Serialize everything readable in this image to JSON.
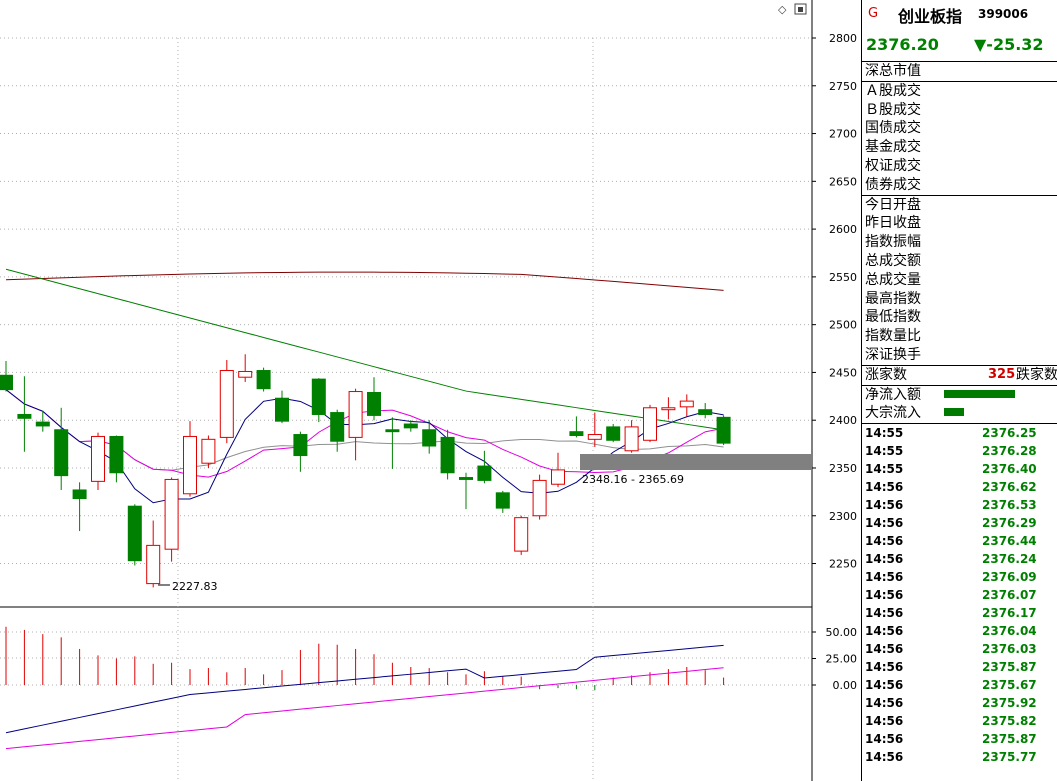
{
  "colors": {
    "up": "#e00000",
    "down": "#008000",
    "ma5": "#000080",
    "ma10": "#e000e0",
    "ma20": "#909090",
    "ma60": "#008000",
    "ma250": "#800000",
    "highlight": "#808080"
  },
  "price_axis": {
    "ticks": [
      "2800",
      "2750",
      "2700",
      "2650",
      "2600",
      "2550",
      "2500",
      "2450",
      "2400",
      "2350",
      "2300",
      "2250"
    ]
  },
  "volume_axis": {
    "ticks": [
      "50.00",
      "25.00",
      "0.00"
    ]
  },
  "annotations": {
    "low_label": "2227.83",
    "range_label": "2348.16 - 2365.69"
  },
  "candles": [
    {
      "o": 2447,
      "c": 2432,
      "h": 2462,
      "l": 2430
    },
    {
      "o": 2406,
      "c": 2402,
      "h": 2446,
      "l": 2367
    },
    {
      "o": 2398,
      "c": 2394,
      "h": 2410,
      "l": 2388
    },
    {
      "o": 2390,
      "c": 2342,
      "h": 2413,
      "l": 2327
    },
    {
      "o": 2327,
      "c": 2318,
      "h": 2335,
      "l": 2284
    },
    {
      "o": 2336,
      "c": 2383,
      "h": 2387,
      "l": 2327
    },
    {
      "o": 2383,
      "c": 2345,
      "h": 2384,
      "l": 2335
    },
    {
      "o": 2310,
      "c": 2253,
      "h": 2312,
      "l": 2248
    },
    {
      "o": 2229,
      "c": 2269,
      "h": 2295,
      "l": 2225
    },
    {
      "o": 2265,
      "c": 2338,
      "h": 2340,
      "l": 2252
    },
    {
      "o": 2323,
      "c": 2383,
      "h": 2399,
      "l": 2320
    },
    {
      "o": 2355,
      "c": 2380,
      "h": 2384,
      "l": 2350
    },
    {
      "o": 2382,
      "c": 2452,
      "h": 2463,
      "l": 2376
    },
    {
      "o": 2445,
      "c": 2451,
      "h": 2469,
      "l": 2440
    },
    {
      "o": 2452,
      "c": 2433,
      "h": 2455,
      "l": 2430
    },
    {
      "o": 2423,
      "c": 2399,
      "h": 2431,
      "l": 2397
    },
    {
      "o": 2385,
      "c": 2363,
      "h": 2388,
      "l": 2346
    },
    {
      "o": 2443,
      "c": 2406,
      "h": 2444,
      "l": 2398
    },
    {
      "o": 2408,
      "c": 2378,
      "h": 2411,
      "l": 2367
    },
    {
      "o": 2382,
      "c": 2430,
      "h": 2433,
      "l": 2358
    },
    {
      "o": 2429,
      "c": 2405,
      "h": 2445,
      "l": 2400
    },
    {
      "o": 2390,
      "c": 2388,
      "h": 2403,
      "l": 2349
    },
    {
      "o": 2396,
      "c": 2392,
      "h": 2400,
      "l": 2388
    },
    {
      "o": 2390,
      "c": 2373,
      "h": 2400,
      "l": 2365
    },
    {
      "o": 2382,
      "c": 2345,
      "h": 2390,
      "l": 2338
    },
    {
      "o": 2340,
      "c": 2338,
      "h": 2345,
      "l": 2307
    },
    {
      "o": 2352,
      "c": 2337,
      "h": 2368,
      "l": 2334
    },
    {
      "o": 2324,
      "c": 2308,
      "h": 2326,
      "l": 2303
    },
    {
      "o": 2263,
      "c": 2298,
      "h": 2300,
      "l": 2259
    },
    {
      "o": 2300,
      "c": 2337,
      "h": 2343,
      "l": 2296
    },
    {
      "o": 2333,
      "c": 2348,
      "h": 2366,
      "l": 2330
    },
    {
      "o": 2388,
      "c": 2384,
      "h": 2404,
      "l": 2382
    },
    {
      "o": 2380,
      "c": 2385,
      "h": 2408,
      "l": 2372
    },
    {
      "o": 2393,
      "c": 2379,
      "h": 2396,
      "l": 2377
    },
    {
      "o": 2368,
      "c": 2393,
      "h": 2400,
      "l": 2366
    },
    {
      "o": 2379,
      "c": 2413,
      "h": 2416,
      "l": 2377
    },
    {
      "o": 2411,
      "c": 2413,
      "h": 2424,
      "l": 2401
    },
    {
      "o": 2414,
      "c": 2420,
      "h": 2427,
      "l": 2404
    },
    {
      "o": 2411,
      "c": 2406,
      "h": 2418,
      "l": 2402
    },
    {
      "o": 2403,
      "c": 2376,
      "h": 2405,
      "l": 2374
    }
  ],
  "volume_bars": [
    55,
    52,
    48,
    45,
    34,
    28,
    25,
    27,
    20,
    21,
    15,
    16,
    12,
    16,
    10,
    14,
    33,
    39,
    38,
    34,
    29,
    21,
    17,
    16,
    12,
    10,
    13,
    8,
    8,
    -4,
    -3,
    -4,
    -5,
    7,
    9,
    12,
    15,
    17,
    14,
    7
  ],
  "panel": {
    "flag": "G",
    "name": "创业板指",
    "code": "399006",
    "price": "2376.20",
    "change": "▼-25.32",
    "market_cap_label": "深总市值",
    "turnover_labels": [
      "Ａ股成交",
      "Ｂ股成交",
      "国债成交",
      "基金成交",
      "权证成交",
      "债券成交"
    ],
    "stat_labels": [
      "今日开盘",
      "昨日收盘",
      "指数振幅",
      "总成交额",
      "总成交量",
      "最高指数",
      "最低指数",
      "指数量比",
      "深证换手"
    ],
    "up_label": "涨家数",
    "up_count": "325",
    "down_label": "跌家数",
    "flow_labels": [
      "净流入额",
      "大宗流入"
    ],
    "flow_values": [
      0.36,
      0.1
    ],
    "ticks": [
      {
        "t": "14:55",
        "v": "2376.25"
      },
      {
        "t": "14:55",
        "v": "2376.28"
      },
      {
        "t": "14:55",
        "v": "2376.40"
      },
      {
        "t": "14:56",
        "v": "2376.62"
      },
      {
        "t": "14:56",
        "v": "2376.53"
      },
      {
        "t": "14:56",
        "v": "2376.29"
      },
      {
        "t": "14:56",
        "v": "2376.44"
      },
      {
        "t": "14:56",
        "v": "2376.24"
      },
      {
        "t": "14:56",
        "v": "2376.09"
      },
      {
        "t": "14:56",
        "v": "2376.07"
      },
      {
        "t": "14:56",
        "v": "2376.17"
      },
      {
        "t": "14:56",
        "v": "2376.04"
      },
      {
        "t": "14:56",
        "v": "2376.03"
      },
      {
        "t": "14:56",
        "v": "2375.87"
      },
      {
        "t": "14:56",
        "v": "2375.67"
      },
      {
        "t": "14:56",
        "v": "2375.92"
      },
      {
        "t": "14:56",
        "v": "2375.82"
      },
      {
        "t": "14:56",
        "v": "2375.87"
      },
      {
        "t": "14:56",
        "v": "2375.77"
      }
    ]
  }
}
